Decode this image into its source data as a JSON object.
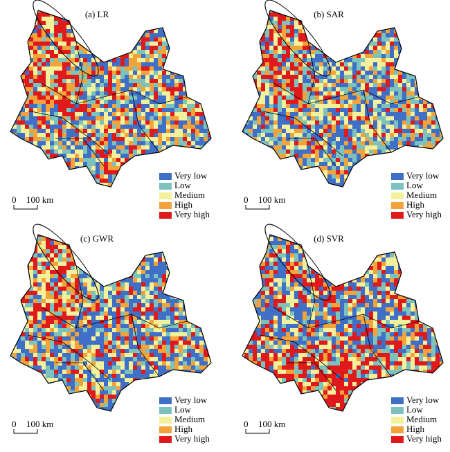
{
  "panels": [
    {
      "title": "(a) LR"
    },
    {
      "title": "(b) SAR"
    },
    {
      "title": "(c) GWR"
    },
    {
      "title": "(d) SVR"
    }
  ],
  "legend": [
    {
      "label": "Very low",
      "color": "#3f6fc6"
    },
    {
      "label": "Low",
      "color": "#7cc3bd"
    },
    {
      "label": "Medium",
      "color": "#f3f19c"
    },
    {
      "label": "High",
      "color": "#f4a33a"
    },
    {
      "label": "Very high",
      "color": "#e0191c"
    }
  ],
  "scale_bar": {
    "zero": "0",
    "label": "100 km"
  }
}
